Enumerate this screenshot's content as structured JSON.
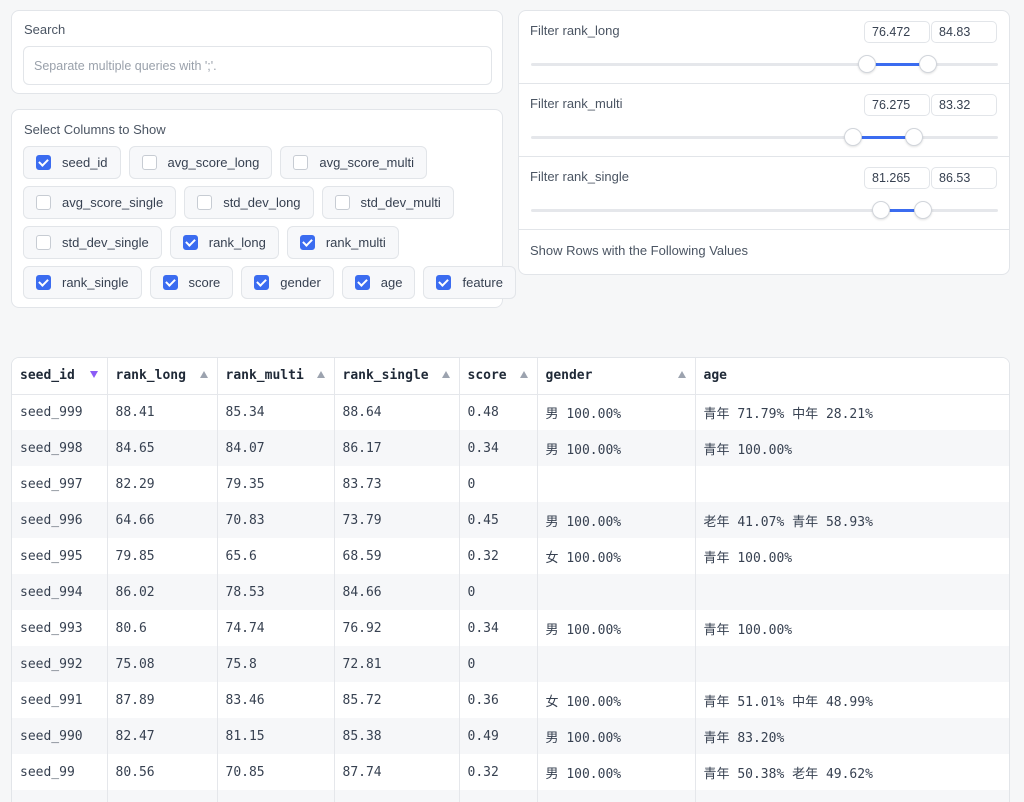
{
  "search": {
    "label": "Search",
    "placeholder": "Separate multiple queries with ';'."
  },
  "columns": {
    "label": "Select Columns to Show",
    "rows": [
      [
        {
          "label": "seed_id",
          "checked": true
        },
        {
          "label": "avg_score_long",
          "checked": false
        },
        {
          "label": "avg_score_multi",
          "checked": false
        }
      ],
      [
        {
          "label": "avg_score_single",
          "checked": false
        },
        {
          "label": "std_dev_long",
          "checked": false
        },
        {
          "label": "std_dev_multi",
          "checked": false
        }
      ],
      [
        {
          "label": "std_dev_single",
          "checked": false
        },
        {
          "label": "rank_long",
          "checked": true
        },
        {
          "label": "rank_multi",
          "checked": true
        }
      ],
      [
        {
          "label": "rank_single",
          "checked": true
        },
        {
          "label": "score",
          "checked": true
        },
        {
          "label": "gender",
          "checked": true
        },
        {
          "label": "age",
          "checked": true
        },
        {
          "label": "feature",
          "checked": true
        }
      ]
    ]
  },
  "filters": [
    {
      "label": "Filter rank_long",
      "min": "76.472",
      "max": "84.83",
      "low_frac": 0.72,
      "high_frac": 0.85
    },
    {
      "label": "Filter rank_multi",
      "min": "76.275",
      "max": "83.32",
      "low_frac": 0.69,
      "high_frac": 0.82
    },
    {
      "label": "Filter rank_single",
      "min": "81.265",
      "max": "86.53",
      "low_frac": 0.75,
      "high_frac": 0.84
    }
  ],
  "show_rows_label": "Show Rows with the Following Values",
  "table": {
    "headers": [
      {
        "label": "seed_id",
        "sort": "desc"
      },
      {
        "label": "rank_long",
        "sort": "asc"
      },
      {
        "label": "rank_multi",
        "sort": "asc"
      },
      {
        "label": "rank_single",
        "sort": "asc"
      },
      {
        "label": "score",
        "sort": "asc"
      },
      {
        "label": "gender",
        "sort": "asc"
      },
      {
        "label": "age",
        "sort": "none"
      }
    ],
    "rows": [
      [
        "seed_999",
        "88.41",
        "85.34",
        "88.64",
        "0.48",
        "男 100.00%",
        "青年 71.79% 中年 28.21%"
      ],
      [
        "seed_998",
        "84.65",
        "84.07",
        "86.17",
        "0.34",
        "男 100.00%",
        "青年 100.00%"
      ],
      [
        "seed_997",
        "82.29",
        "79.35",
        "83.73",
        "0",
        "",
        ""
      ],
      [
        "seed_996",
        "64.66",
        "70.83",
        "73.79",
        "0.45",
        "男 100.00%",
        "老年 41.07% 青年 58.93%"
      ],
      [
        "seed_995",
        "79.85",
        "65.6",
        "68.59",
        "0.32",
        "女 100.00%",
        "青年 100.00%"
      ],
      [
        "seed_994",
        "86.02",
        "78.53",
        "84.66",
        "0",
        "",
        ""
      ],
      [
        "seed_993",
        "80.6",
        "74.74",
        "76.92",
        "0.34",
        "男 100.00%",
        "青年 100.00%"
      ],
      [
        "seed_992",
        "75.08",
        "75.8",
        "72.81",
        "0",
        "",
        ""
      ],
      [
        "seed_991",
        "87.89",
        "83.46",
        "85.72",
        "0.36",
        "女 100.00%",
        "青年 51.01% 中年 48.99%"
      ],
      [
        "seed_990",
        "82.47",
        "81.15",
        "85.38",
        "0.49",
        "男 100.00%",
        "青年 83.20%"
      ],
      [
        "seed_99",
        "80.56",
        "70.85",
        "87.74",
        "0.32",
        "男 100.00%",
        "青年 50.38% 老年 49.62%"
      ],
      [
        "",
        "",
        "",
        "",
        "",
        "",
        ""
      ]
    ]
  },
  "colors": {
    "accent": "#3b6cf0",
    "sort_active": "#8b5cf6"
  }
}
